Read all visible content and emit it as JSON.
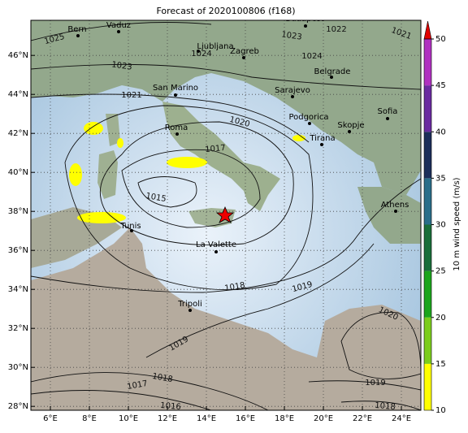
{
  "title": "Forecast of 2020100806 (f168)",
  "map": {
    "lonlim": [
      5,
      25
    ],
    "latlim": [
      27.8,
      47.8
    ],
    "lonticks": [
      {
        "value": 6,
        "label": "6°E"
      },
      {
        "value": 8,
        "label": "8°E"
      },
      {
        "value": 10,
        "label": "10°E"
      },
      {
        "value": 12,
        "label": "12°E"
      },
      {
        "value": 14,
        "label": "14°E"
      },
      {
        "value": 16,
        "label": "16°E"
      },
      {
        "value": 18,
        "label": "18°E"
      },
      {
        "value": 20,
        "label": "20°E"
      },
      {
        "value": 22,
        "label": "22°E"
      },
      {
        "value": 24,
        "label": "24°E"
      }
    ],
    "latticks": [
      {
        "value": 28,
        "label": "28°N"
      },
      {
        "value": 30,
        "label": "30°N"
      },
      {
        "value": 32,
        "label": "32°N"
      },
      {
        "value": 34,
        "label": "34°N"
      },
      {
        "value": 36,
        "label": "36°N"
      },
      {
        "value": 38,
        "label": "38°N"
      },
      {
        "value": 40,
        "label": "40°N"
      },
      {
        "value": 42,
        "label": "42°N"
      },
      {
        "value": 44,
        "label": "44°N"
      },
      {
        "value": 46,
        "label": "46°N"
      }
    ]
  },
  "cities": [
    "Bern",
    "Vaduz",
    "Budapest",
    "Ljubljana",
    "Zagreb",
    "Belgrade",
    "San Marino",
    "Sarajevo",
    "Roma",
    "Podgorica",
    "Skopje",
    "Sofia",
    "Tirana",
    "Tunis",
    "Athens",
    "La Valette",
    "Tripoli"
  ],
  "isobar_labels": [
    1025,
    1023,
    1024,
    1023,
    1022,
    1021,
    1024,
    1021,
    1020,
    1017,
    1015,
    1018,
    1019,
    1020,
    1019,
    1018,
    1017,
    1016,
    1019,
    1018
  ],
  "colorbar": {
    "label": "10 m wind speed (m/s)",
    "lim": [
      10,
      50
    ],
    "ticks": [
      10,
      15,
      20,
      25,
      30,
      35,
      40,
      45,
      50
    ],
    "colors": [
      "#ffff00",
      "#7ccd1c",
      "#1ca51c",
      "#1a6e3a",
      "#2a6e8a",
      "#1c2e5a",
      "#6a2aa0",
      "#b030c0"
    ],
    "extend_color": "#e00000"
  }
}
